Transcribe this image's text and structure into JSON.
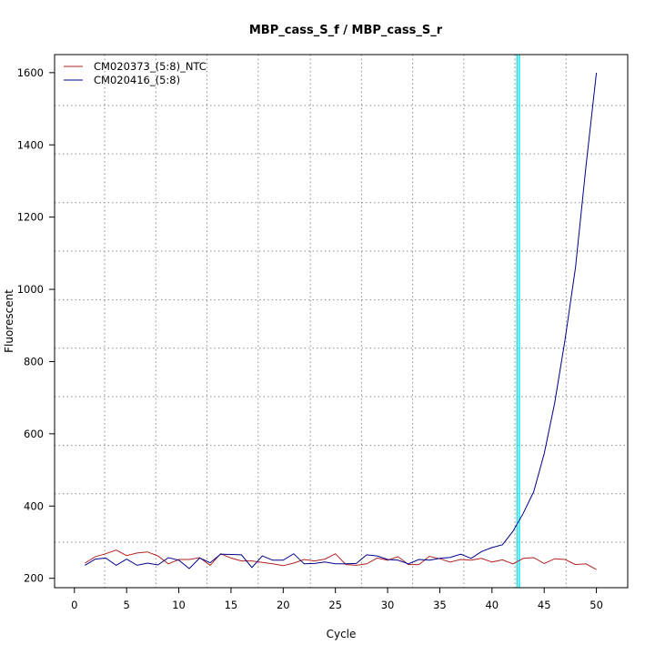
{
  "chart_data": {
    "type": "line",
    "title": "MBP_cass_S_f / MBP_cass_S_r",
    "xlabel": "Cycle",
    "ylabel": "Fluorescent",
    "xlim": [
      -1.9,
      53.0
    ],
    "ylim": [
      174,
      1650
    ],
    "xticks": [
      0,
      5,
      10,
      15,
      20,
      25,
      30,
      35,
      40,
      45,
      50
    ],
    "yticks": [
      200,
      400,
      600,
      800,
      1000,
      1200,
      1400,
      1600
    ],
    "grid_x": [
      2.9,
      7.8,
      12.7,
      17.6,
      22.6,
      27.5,
      32.4,
      37.3,
      42.2,
      47.1
    ],
    "grid_y": [
      300,
      434,
      568,
      703,
      837,
      971,
      1106,
      1240,
      1375,
      1509
    ],
    "grid": true,
    "legend_position": "top-left",
    "threshold_cycle": 42.4,
    "threshold_color": "#00e5ee",
    "x": [
      1,
      2,
      3,
      4,
      5,
      6,
      7,
      8,
      9,
      10,
      11,
      12,
      13,
      14,
      15,
      16,
      17,
      18,
      19,
      20,
      21,
      22,
      23,
      24,
      25,
      26,
      27,
      28,
      29,
      30,
      31,
      32,
      33,
      34,
      35,
      36,
      37,
      38,
      39,
      40,
      41,
      42,
      43,
      44,
      45,
      46,
      47,
      48,
      49,
      50
    ],
    "series": [
      {
        "name": "CM020373_(5:8)_NTC",
        "color": "#b22222",
        "values": [
          242,
          260,
          268,
          278,
          263,
          270,
          273,
          262,
          240,
          252,
          252,
          257,
          236,
          268,
          256,
          248,
          248,
          244,
          240,
          235,
          242,
          252,
          248,
          253,
          268,
          238,
          236,
          240,
          256,
          250,
          260,
          238,
          238,
          261,
          254,
          245,
          252,
          250,
          255,
          245,
          251,
          240,
          255,
          257,
          241,
          254,
          252,
          238,
          240,
          224
        ]
      },
      {
        "name": "CM020416_(5:8)",
        "color": "#00008b",
        "values": [
          236,
          253,
          256,
          236,
          253,
          236,
          242,
          237,
          257,
          250,
          227,
          256,
          243,
          267,
          266,
          265,
          230,
          262,
          250,
          250,
          268,
          240,
          241,
          245,
          240,
          240,
          241,
          265,
          262,
          252,
          250,
          240,
          252,
          250,
          255,
          258,
          267,
          255,
          274,
          285,
          293,
          330,
          380,
          440,
          545,
          685,
          860,
          1060,
          1340,
          1600
        ]
      }
    ]
  }
}
